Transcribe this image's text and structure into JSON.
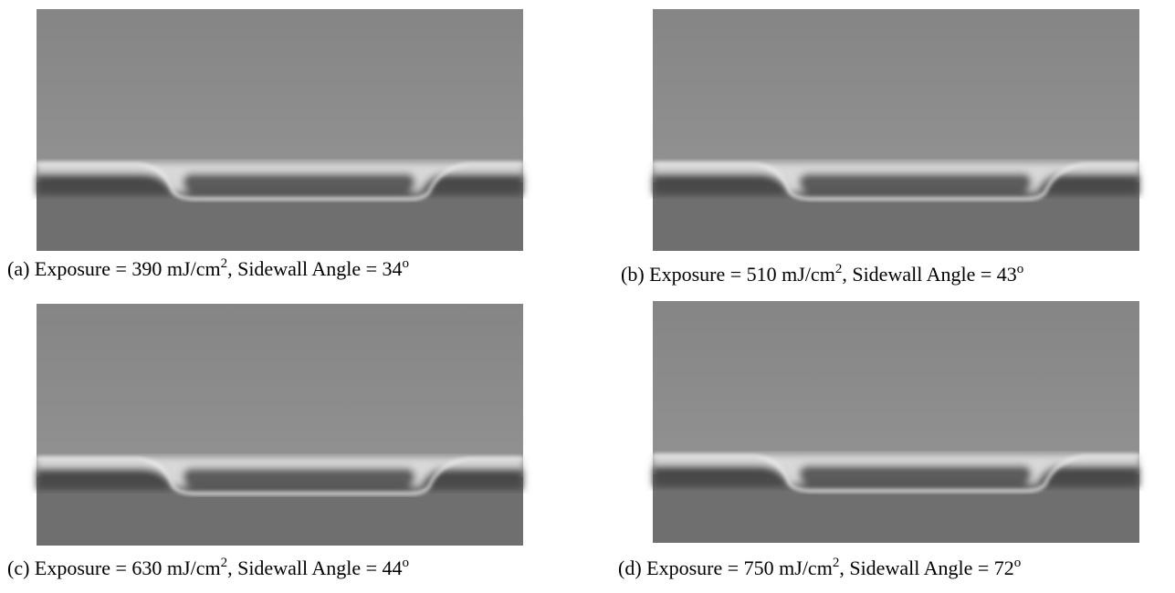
{
  "panels": [
    {
      "caption": {
        "lead": "(a) Exposure = 390 mJ/cm",
        "sup1": "2",
        "mid": ", Sidewall Angle = 34",
        "sup2": "o"
      }
    },
    {
      "caption": {
        "lead": "(b) Exposure = 510 mJ/cm",
        "sup1": "2",
        "mid": ", Sidewall Angle = 43",
        "sup2": "o"
      }
    },
    {
      "caption": {
        "lead": "(c) Exposure = 630 mJ/cm",
        "sup1": "2",
        "mid": ", Sidewall Angle = 44",
        "sup2": "o"
      }
    },
    {
      "caption": {
        "lead": "(d) Exposure = 750 mJ/cm",
        "sup1": "2",
        "mid": ", Sidewall Angle = 72",
        "sup2": "o"
      }
    }
  ]
}
